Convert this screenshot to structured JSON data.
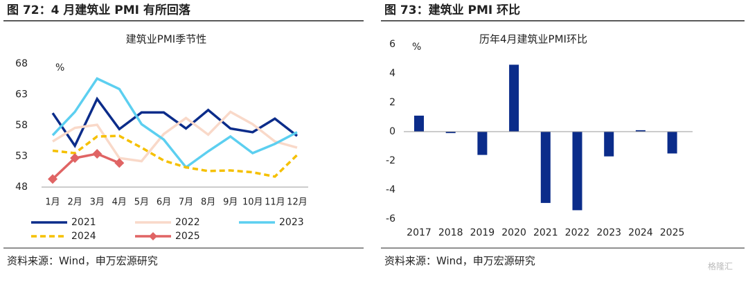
{
  "chart_data": [
    {
      "type": "line",
      "title": "图 72：4 月建筑业 PMI 有所回落",
      "subtitle": "建筑业PMI季节性",
      "y_label": "%",
      "categories": [
        "1月",
        "2月",
        "3月",
        "4月",
        "5月",
        "6月",
        "7月",
        "8月",
        "9月",
        "10月",
        "11月",
        "12月"
      ],
      "ylim": [
        48,
        68
      ],
      "yticks": [
        48,
        53,
        58,
        63,
        68
      ],
      "series": [
        {
          "name": "2021",
          "color": "#0b2c8a",
          "values": [
            60.0,
            54.7,
            62.3,
            57.4,
            60.1,
            60.1,
            57.5,
            60.5,
            57.5,
            56.9,
            59.1,
            56.3
          ]
        },
        {
          "name": "2022",
          "color": "#f9d9c9",
          "values": [
            55.4,
            57.6,
            58.1,
            52.7,
            52.2,
            56.6,
            59.2,
            56.5,
            60.2,
            58.2,
            55.4,
            54.4
          ]
        },
        {
          "name": "2023",
          "color": "#5ccff0",
          "values": [
            56.4,
            60.2,
            65.6,
            63.9,
            58.2,
            55.7,
            51.2,
            53.8,
            56.2,
            53.5,
            55.0,
            56.9
          ]
        },
        {
          "name": "2024",
          "color": "#f5c000",
          "dash": true,
          "values": [
            53.9,
            53.5,
            56.2,
            56.3,
            54.4,
            52.3,
            51.2,
            50.6,
            50.7,
            50.4,
            49.7,
            53.2
          ]
        },
        {
          "name": "2025",
          "color": "#e06464",
          "marker": "diamond",
          "values": [
            49.3,
            52.7,
            53.4,
            51.9,
            null,
            null,
            null,
            null,
            null,
            null,
            null,
            null
          ]
        }
      ],
      "source": "资料来源：Wind，申万宏源研究"
    },
    {
      "type": "bar",
      "title": "图 73：建筑业 PMI 环比",
      "subtitle": "历年4月建筑业PMI环比",
      "y_label": "%",
      "categories": [
        "2017",
        "2018",
        "2019",
        "2020",
        "2021",
        "2022",
        "2023",
        "2024",
        "2025"
      ],
      "values": [
        1.1,
        -0.1,
        -1.6,
        4.6,
        -4.9,
        -5.4,
        -1.7,
        0.1,
        -1.5
      ],
      "color": "#0b2c8a",
      "ylim": [
        -6,
        6
      ],
      "yticks": [
        -6,
        -4,
        -2,
        0,
        2,
        4,
        6
      ],
      "source": "资料来源：Wind，申万宏源研究"
    }
  ],
  "watermark": "格隆汇"
}
